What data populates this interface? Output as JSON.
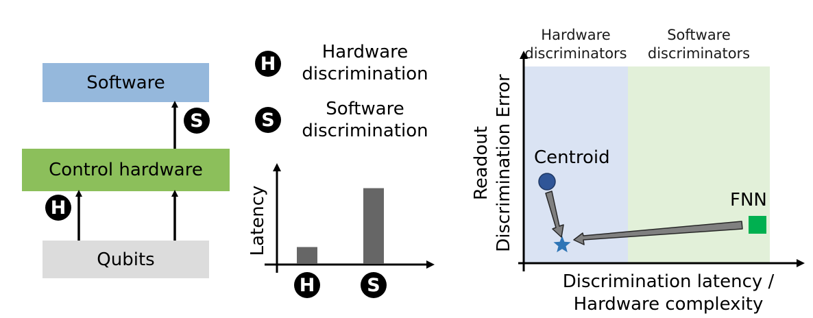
{
  "stack": {
    "software_label": "Software",
    "control_label": "Control hardware",
    "qubits_label": "Qubits",
    "badge_s": "S",
    "badge_h": "H",
    "colors": {
      "software": "#95b8dc",
      "control": "#8cbf5b",
      "qubits": "#dcdcdc"
    }
  },
  "legend": {
    "h_badge": "H",
    "h_line1": "Hardware",
    "h_line2": "discrimination",
    "s_badge": "S",
    "s_line1": "Software",
    "s_line2": "discrimination"
  },
  "latency_chart": {
    "ylabel": "Latency",
    "x_badges": [
      "H",
      "S"
    ],
    "bar_color": "#666666"
  },
  "tradeoff": {
    "region_hw_line1": "Hardware",
    "region_hw_line2": "discriminators",
    "region_sw_line1": "Software",
    "region_sw_line2": "discriminators",
    "ylabel_line1": "Readout",
    "ylabel_line2": "Discrimination Error",
    "xlabel_line1": "Discrimination latency /",
    "xlabel_line2": "Hardware complexity",
    "centroid_label": "Centroid",
    "fnn_label": "FNN",
    "colors": {
      "hw_region": "#dae3f3",
      "sw_region": "#e2f0d9",
      "centroid": "#2f5597",
      "fnn": "#00b050",
      "star": "#2e75b6"
    }
  },
  "chart_data": {
    "type": "bar",
    "categories": [
      "H",
      "S"
    ],
    "values": [
      1,
      4.5
    ],
    "ylim": [
      0,
      5.5
    ],
    "xlabel": "",
    "ylabel": "Latency",
    "grid": false
  }
}
